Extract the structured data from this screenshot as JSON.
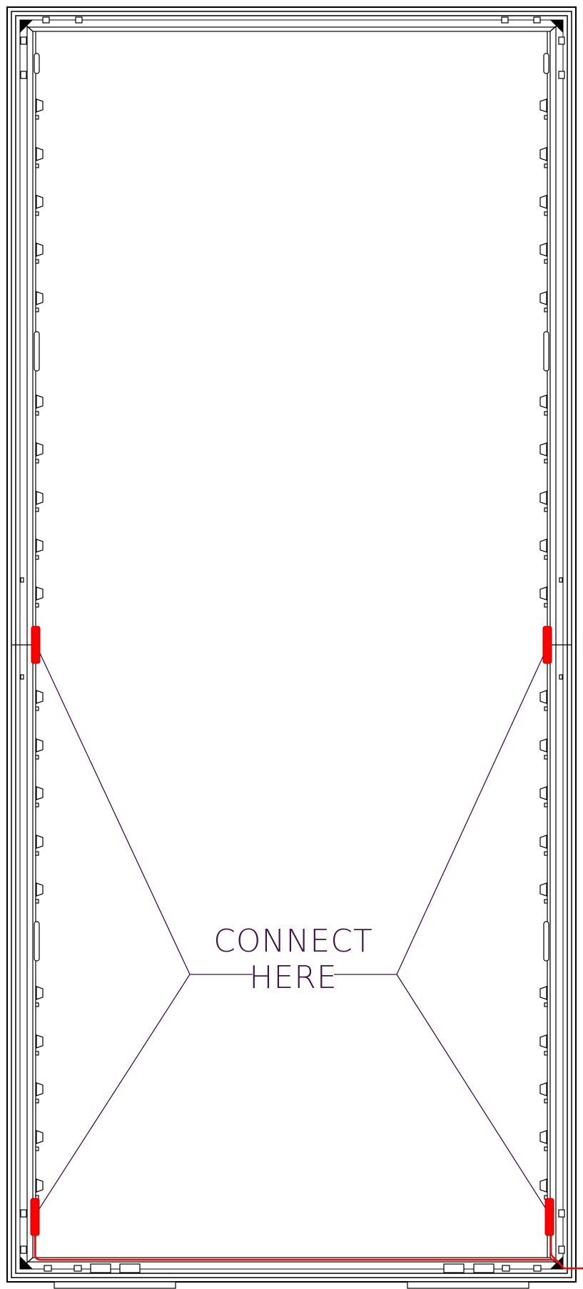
{
  "callout": {
    "line1": "CONNECT",
    "line2": "HERE"
  },
  "colors": {
    "frame": "#000000",
    "connector": "#ff0000",
    "cable": "#ff0000",
    "callout": "#3f1248",
    "background": "#ffffff"
  },
  "icons": {
    "connector": "red-connector-icon",
    "bracket": "wall-bracket-icon",
    "feet": "base-foot-icon",
    "leg": "stand-leg-icon"
  }
}
